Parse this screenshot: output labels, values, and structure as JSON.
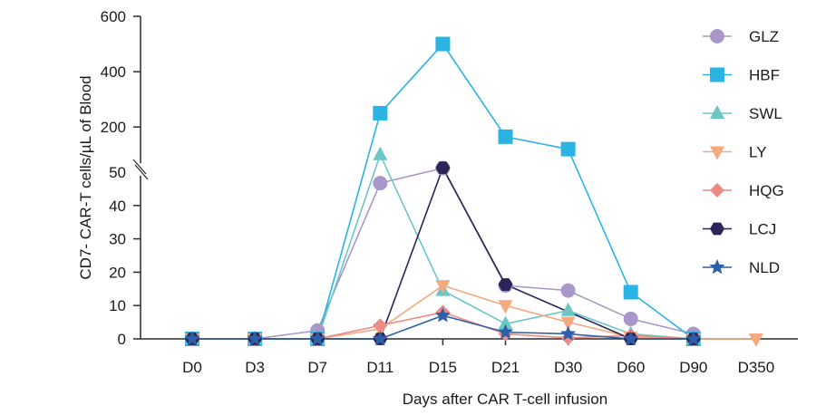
{
  "chart_data": {
    "type": "line",
    "title": "",
    "xlabel": "Days after CAR T-cell infusion",
    "ylabel": "CD7- CAR-T cells/µL of Blood",
    "categories": [
      "D0",
      "D3",
      "D7",
      "D11",
      "D15",
      "D21",
      "D30",
      "D60",
      "D90",
      "D350"
    ],
    "y_axis": {
      "broken": true,
      "lower_segment": {
        "range": [
          0,
          50
        ],
        "ticks": [
          0,
          10,
          20,
          30,
          40,
          50
        ]
      },
      "upper_segment": {
        "range": [
          50,
          600
        ],
        "ticks": [
          200,
          400,
          600
        ]
      }
    },
    "grid": false,
    "legend_position": "right",
    "series": [
      {
        "name": "GLZ",
        "color": "#a897c9",
        "marker": "circle",
        "values": [
          0,
          0,
          2.5,
          46.7,
          51.5,
          16,
          14.5,
          6,
          1.5,
          null
        ]
      },
      {
        "name": "HBF",
        "color": "#2ab3e3",
        "marker": "square",
        "values": [
          0,
          0,
          0,
          250,
          500,
          165,
          120,
          14,
          0,
          null
        ]
      },
      {
        "name": "SWL",
        "color": "#6cc6c6",
        "marker": "triangle-up",
        "values": [
          0,
          0,
          0,
          100,
          14.5,
          4.5,
          8.5,
          1.5,
          0,
          null
        ]
      },
      {
        "name": "LY",
        "color": "#f5a97f",
        "marker": "triangle-down",
        "values": [
          0,
          0,
          0,
          3,
          16,
          10,
          5,
          0.5,
          0,
          0
        ]
      },
      {
        "name": "HQG",
        "color": "#ec8a85",
        "marker": "diamond",
        "values": [
          0,
          0,
          0,
          4,
          8,
          1.5,
          0.3,
          1,
          0,
          null
        ]
      },
      {
        "name": "LCJ",
        "color": "#2b2557",
        "marker": "hexagon",
        "values": [
          0,
          0,
          0,
          0,
          52.5,
          16.3,
          null,
          0,
          0,
          null
        ]
      },
      {
        "name": "NLD",
        "color": "#2d5fa8",
        "marker": "star",
        "values": [
          0,
          0,
          0,
          0,
          7,
          2,
          1.5,
          0,
          0,
          null
        ]
      }
    ]
  }
}
